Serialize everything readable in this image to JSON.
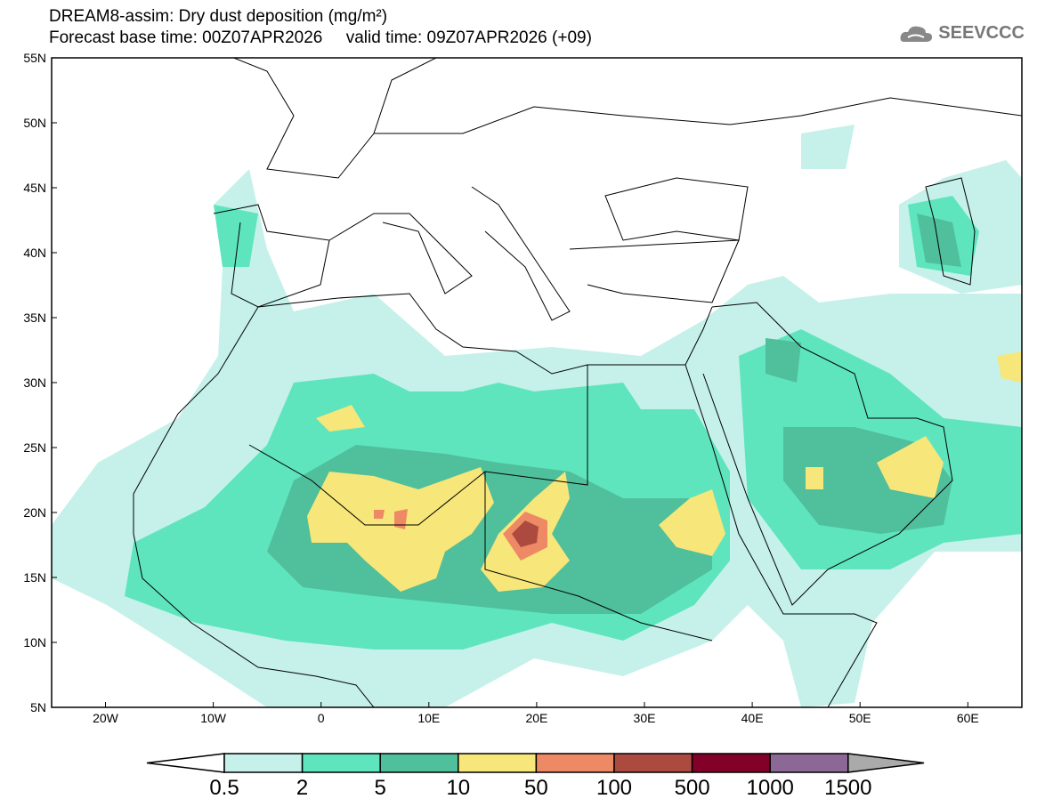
{
  "header": {
    "title": "DREAM8-assim: Dry dust deposition (mg/m²)",
    "subtitle": "Forecast base time: 00Z07APR2026     valid time: 09Z07APR2026 (+09)",
    "logo": "SEEVCCC"
  },
  "axes": {
    "lat_labels": [
      "55N",
      "50N",
      "45N",
      "40N",
      "35N",
      "30N",
      "25N",
      "20N",
      "15N",
      "10N",
      "5N"
    ],
    "lon_labels": [
      "20W",
      "10W",
      "0",
      "10E",
      "20E",
      "30E",
      "40E",
      "50E",
      "60E"
    ]
  },
  "colorbar": {
    "labels": [
      "0.5",
      "2",
      "5",
      "10",
      "50",
      "100",
      "500",
      "1000",
      "1500"
    ],
    "colors": [
      "#ffffff",
      "#c5f1ea",
      "#5ee5bd",
      "#50bf9b",
      "#f7e67a",
      "#ed8a65",
      "#ad4a40",
      "#830028",
      "#8c6896",
      "#aaaaaa"
    ]
  }
}
